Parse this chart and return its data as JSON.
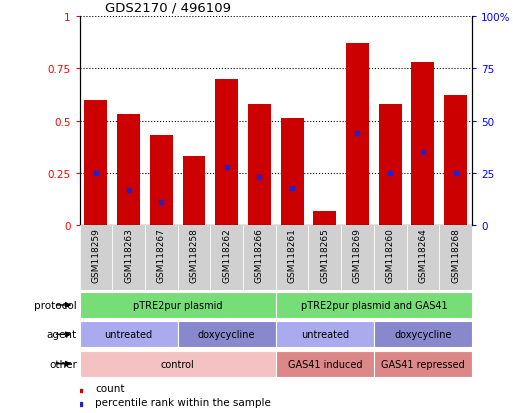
{
  "title": "GDS2170 / 496109",
  "samples": [
    "GSM118259",
    "GSM118263",
    "GSM118267",
    "GSM118258",
    "GSM118262",
    "GSM118266",
    "GSM118261",
    "GSM118265",
    "GSM118269",
    "GSM118260",
    "GSM118264",
    "GSM118268"
  ],
  "bar_values": [
    0.6,
    0.53,
    0.43,
    0.33,
    0.7,
    0.58,
    0.51,
    0.07,
    0.87,
    0.58,
    0.78,
    0.62
  ],
  "blue_dots": [
    0.25,
    0.17,
    0.11,
    null,
    0.28,
    0.23,
    0.18,
    null,
    0.44,
    0.25,
    0.35,
    0.25
  ],
  "bar_color": "#cc0000",
  "blue_color": "#2222cc",
  "yticks_left": [
    0,
    0.25,
    0.5,
    0.75,
    1.0
  ],
  "yticks_right": [
    0,
    25,
    50,
    75,
    100
  ],
  "ytick_labels_left": [
    "0",
    "0.25",
    "0.5",
    "0.75",
    "1"
  ],
  "ytick_labels_right": [
    "0",
    "25",
    "50",
    "75",
    "100%"
  ],
  "protocol_groups": [
    {
      "label": "pTRE2pur plasmid",
      "start": 0,
      "end": 5,
      "color": "#77dd77"
    },
    {
      "label": "pTRE2pur plasmid and GAS41",
      "start": 6,
      "end": 11,
      "color": "#77dd77"
    }
  ],
  "agent_groups": [
    {
      "label": "untreated",
      "start": 0,
      "end": 2,
      "color": "#aaaaee"
    },
    {
      "label": "doxycycline",
      "start": 3,
      "end": 5,
      "color": "#8888cc"
    },
    {
      "label": "untreated",
      "start": 6,
      "end": 8,
      "color": "#aaaaee"
    },
    {
      "label": "doxycycline",
      "start": 9,
      "end": 11,
      "color": "#8888cc"
    }
  ],
  "other_groups": [
    {
      "label": "control",
      "start": 0,
      "end": 5,
      "color": "#f4c2c2"
    },
    {
      "label": "GAS41 induced",
      "start": 6,
      "end": 8,
      "color": "#dd8888"
    },
    {
      "label": "GAS41 repressed",
      "start": 9,
      "end": 11,
      "color": "#dd8888"
    }
  ],
  "row_labels": [
    "protocol",
    "agent",
    "other"
  ],
  "legend_count_color": "#cc0000",
  "legend_rank_color": "#2222cc",
  "xtick_bg": "#d0d0d0",
  "background_color": "#ffffff"
}
